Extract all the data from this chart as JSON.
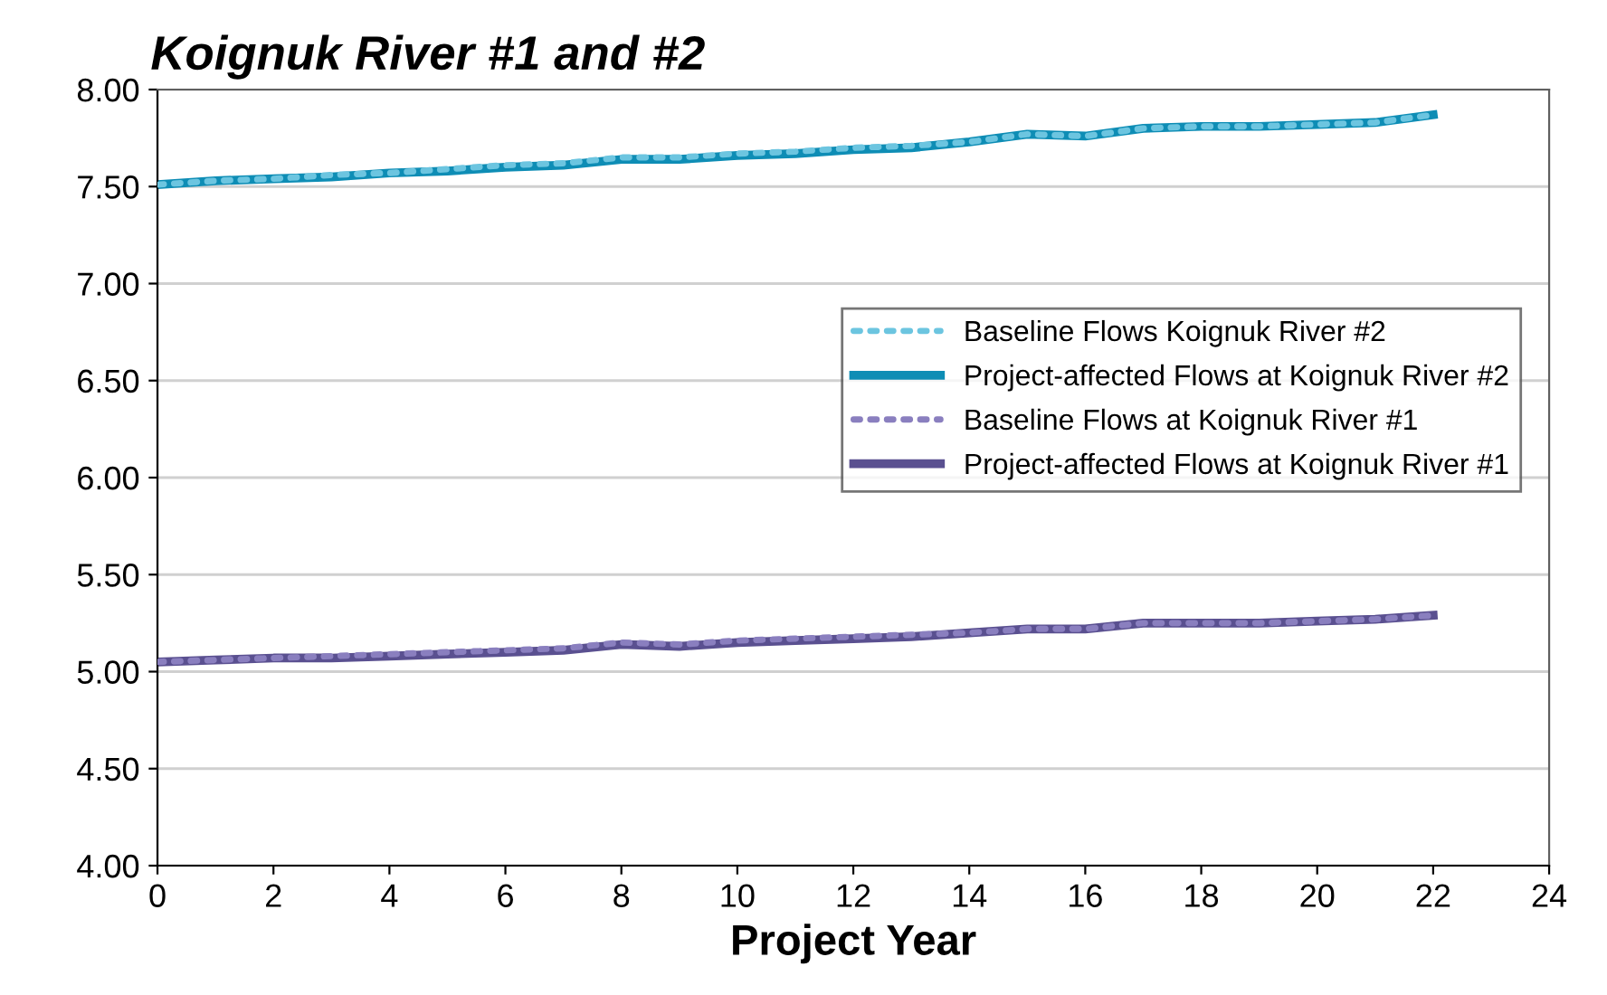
{
  "chart_data": {
    "type": "line",
    "title": "Koignuk River #1 and #2",
    "xlabel": "Project Year",
    "x": [
      0,
      1,
      2,
      3,
      4,
      5,
      6,
      7,
      8,
      9,
      10,
      11,
      12,
      13,
      14,
      15,
      16,
      17,
      18,
      19,
      20,
      21,
      22
    ],
    "series": [
      {
        "name": "Baseline Flows Koignuk River #2",
        "color": "#6cc5e0",
        "line_style": "dotted",
        "values": [
          7.51,
          7.53,
          7.54,
          7.56,
          7.57,
          7.59,
          7.61,
          7.62,
          7.65,
          7.65,
          7.67,
          7.68,
          7.7,
          7.71,
          7.73,
          7.77,
          7.76,
          7.8,
          7.81,
          7.81,
          7.82,
          7.83,
          7.87
        ]
      },
      {
        "name": "Project-affected Flows at Koignuk River #2",
        "color": "#0e8db5",
        "line_style": "solid",
        "values": [
          7.51,
          7.53,
          7.54,
          7.55,
          7.57,
          7.58,
          7.6,
          7.61,
          7.64,
          7.64,
          7.66,
          7.67,
          7.69,
          7.7,
          7.73,
          7.77,
          7.76,
          7.8,
          7.81,
          7.81,
          7.82,
          7.83,
          7.87
        ]
      },
      {
        "name": "Baseline Flows at Koignuk River #1",
        "color": "#8a7fbf",
        "line_style": "dotted",
        "values": [
          5.05,
          5.06,
          5.07,
          5.08,
          5.09,
          5.1,
          5.11,
          5.12,
          5.15,
          5.14,
          5.16,
          5.17,
          5.18,
          5.19,
          5.2,
          5.22,
          5.22,
          5.25,
          5.25,
          5.25,
          5.26,
          5.27,
          5.29
        ]
      },
      {
        "name": "Project-affected Flows at Koignuk River #1",
        "color": "#5a5090",
        "line_style": "solid",
        "values": [
          5.05,
          5.06,
          5.07,
          5.07,
          5.08,
          5.09,
          5.1,
          5.11,
          5.14,
          5.13,
          5.15,
          5.16,
          5.17,
          5.18,
          5.2,
          5.22,
          5.22,
          5.25,
          5.25,
          5.25,
          5.26,
          5.27,
          5.29
        ]
      }
    ],
    "xlim": [
      0,
      24
    ],
    "xticks": [
      0,
      2,
      4,
      6,
      8,
      10,
      12,
      14,
      16,
      18,
      20,
      22,
      24
    ],
    "ylim": [
      4.0,
      8.0
    ],
    "yticks": [
      {
        "value": 4.0,
        "label": "4.00"
      },
      {
        "value": 4.5,
        "label": "4.50"
      },
      {
        "value": 5.0,
        "label": "5.00"
      },
      {
        "value": 5.5,
        "label": "5.50"
      },
      {
        "value": 6.0,
        "label": "6.00"
      },
      {
        "value": 6.5,
        "label": "6.50"
      },
      {
        "value": 7.0,
        "label": "7.00"
      },
      {
        "value": 7.5,
        "label": "7.50"
      },
      {
        "value": 8.0,
        "label": "8.00"
      }
    ],
    "grid": "y",
    "legend": "center right",
    "marker": "none"
  }
}
